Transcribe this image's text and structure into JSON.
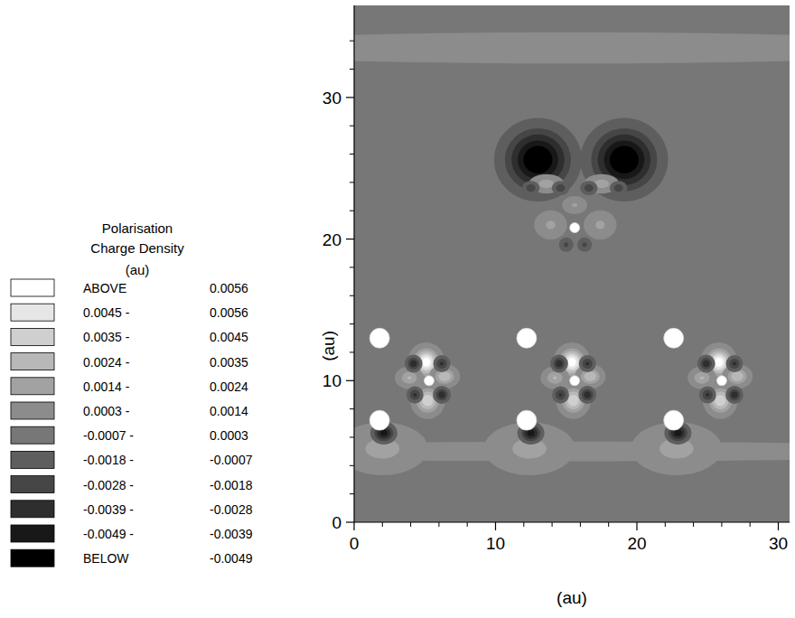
{
  "chart_data": {
    "type": "contour",
    "xlabel": "(au)",
    "ylabel": "(au)",
    "xlim": [
      0,
      30.8
    ],
    "ylim": [
      0,
      36.5
    ],
    "xticks": [
      0,
      10,
      20,
      30
    ],
    "yticks": [
      0,
      10,
      20,
      30
    ],
    "xticks_minor": [
      2,
      4,
      6,
      8,
      12,
      14,
      16,
      18,
      22,
      24,
      26,
      28
    ],
    "yticks_minor": [
      2,
      4,
      6,
      8,
      12,
      14,
      16,
      18,
      22,
      24,
      26,
      28,
      32,
      34
    ],
    "background": 0,
    "blobs": [
      {
        "x": 15.4,
        "y": 5.0,
        "rx": 30,
        "ry": 0.7,
        "value": 0.0008
      },
      {
        "x": 15.4,
        "y": 33.5,
        "rx": 30,
        "ry": 1.2,
        "value": 0.0007
      },
      {
        "x": 2.0,
        "y": 5.2,
        "rx": 2.4,
        "ry": 1.4,
        "value": 0.0018
      },
      {
        "x": 12.4,
        "y": 5.2,
        "rx": 2.4,
        "ry": 1.4,
        "value": 0.0018
      },
      {
        "x": 22.8,
        "y": 5.2,
        "rx": 2.4,
        "ry": 1.4,
        "value": 0.0018
      },
      {
        "x": 2.1,
        "y": 6.3,
        "rx": 0.7,
        "ry": 0.6,
        "value": -0.0045
      },
      {
        "x": 12.5,
        "y": 6.3,
        "rx": 0.7,
        "ry": 0.6,
        "value": -0.0045
      },
      {
        "x": 22.9,
        "y": 6.3,
        "rx": 0.7,
        "ry": 0.6,
        "value": -0.0045
      },
      {
        "x": 5.1,
        "y": 11.3,
        "rx": 0.75,
        "ry": 0.8,
        "value": 0.0065
      },
      {
        "x": 5.2,
        "y": 8.6,
        "rx": 0.75,
        "ry": 0.8,
        "value": 0.0045
      },
      {
        "x": 6.4,
        "y": 10.3,
        "rx": 0.7,
        "ry": 0.55,
        "value": 0.0035
      },
      {
        "x": 3.9,
        "y": 10.2,
        "rx": 0.7,
        "ry": 0.55,
        "value": 0.0025
      },
      {
        "x": 4.2,
        "y": 11.2,
        "rx": 0.5,
        "ry": 0.5,
        "value": -0.0035
      },
      {
        "x": 6.2,
        "y": 11.2,
        "rx": 0.5,
        "ry": 0.5,
        "value": -0.003
      },
      {
        "x": 4.3,
        "y": 9.0,
        "rx": 0.5,
        "ry": 0.5,
        "value": -0.003
      },
      {
        "x": 6.2,
        "y": 9.0,
        "rx": 0.5,
        "ry": 0.5,
        "value": -0.0035
      },
      {
        "x": 15.4,
        "y": 11.3,
        "rx": 0.75,
        "ry": 0.8,
        "value": 0.0065
      },
      {
        "x": 15.5,
        "y": 8.6,
        "rx": 0.75,
        "ry": 0.8,
        "value": 0.0045
      },
      {
        "x": 16.7,
        "y": 10.3,
        "rx": 0.7,
        "ry": 0.55,
        "value": 0.0035
      },
      {
        "x": 14.2,
        "y": 10.2,
        "rx": 0.7,
        "ry": 0.55,
        "value": 0.0025
      },
      {
        "x": 14.5,
        "y": 11.2,
        "rx": 0.5,
        "ry": 0.5,
        "value": -0.0035
      },
      {
        "x": 16.5,
        "y": 11.2,
        "rx": 0.5,
        "ry": 0.5,
        "value": -0.003
      },
      {
        "x": 14.6,
        "y": 9.0,
        "rx": 0.5,
        "ry": 0.5,
        "value": -0.003
      },
      {
        "x": 16.5,
        "y": 9.0,
        "rx": 0.5,
        "ry": 0.5,
        "value": -0.0035
      },
      {
        "x": 25.8,
        "y": 11.3,
        "rx": 0.75,
        "ry": 0.8,
        "value": 0.0065
      },
      {
        "x": 25.9,
        "y": 8.6,
        "rx": 0.75,
        "ry": 0.8,
        "value": 0.0045
      },
      {
        "x": 27.1,
        "y": 10.3,
        "rx": 0.7,
        "ry": 0.55,
        "value": 0.0035
      },
      {
        "x": 24.6,
        "y": 10.2,
        "rx": 0.7,
        "ry": 0.55,
        "value": 0.0025
      },
      {
        "x": 24.9,
        "y": 11.2,
        "rx": 0.5,
        "ry": 0.5,
        "value": -0.0035
      },
      {
        "x": 26.9,
        "y": 11.2,
        "rx": 0.5,
        "ry": 0.5,
        "value": -0.003
      },
      {
        "x": 25.0,
        "y": 9.0,
        "rx": 0.5,
        "ry": 0.5,
        "value": -0.003
      },
      {
        "x": 26.9,
        "y": 9.0,
        "rx": 0.5,
        "ry": 0.5,
        "value": -0.0035
      },
      {
        "x": 13.0,
        "y": 25.6,
        "rx": 2.1,
        "ry": 2.0,
        "value": -0.0062
      },
      {
        "x": 19.1,
        "y": 25.6,
        "rx": 2.1,
        "ry": 2.0,
        "value": -0.0062
      },
      {
        "x": 13.6,
        "y": 23.9,
        "rx": 0.9,
        "ry": 0.5,
        "value": 0.002
      },
      {
        "x": 17.5,
        "y": 23.9,
        "rx": 0.9,
        "ry": 0.5,
        "value": 0.002
      },
      {
        "x": 12.5,
        "y": 23.6,
        "rx": 0.55,
        "ry": 0.45,
        "value": -0.0025
      },
      {
        "x": 14.6,
        "y": 23.6,
        "rx": 0.55,
        "ry": 0.45,
        "value": -0.0025
      },
      {
        "x": 16.6,
        "y": 23.6,
        "rx": 0.55,
        "ry": 0.45,
        "value": -0.0025
      },
      {
        "x": 18.7,
        "y": 23.6,
        "rx": 0.55,
        "ry": 0.45,
        "value": -0.0025
      },
      {
        "x": 15.0,
        "y": 19.6,
        "rx": 0.5,
        "ry": 0.5,
        "value": -0.002
      },
      {
        "x": 16.3,
        "y": 19.6,
        "rx": 0.5,
        "ry": 0.5,
        "value": -0.002
      },
      {
        "x": 13.9,
        "y": 21.0,
        "rx": 0.9,
        "ry": 0.8,
        "value": 0.0016
      },
      {
        "x": 17.4,
        "y": 21.0,
        "rx": 0.9,
        "ry": 0.8,
        "value": 0.0016
      },
      {
        "x": 15.6,
        "y": 22.4,
        "rx": 0.7,
        "ry": 0.5,
        "value": 0.0015
      }
    ],
    "atoms": [
      {
        "x": 1.8,
        "y": 13.0,
        "r": 0.7
      },
      {
        "x": 12.2,
        "y": 13.0,
        "r": 0.7
      },
      {
        "x": 22.6,
        "y": 13.0,
        "r": 0.7
      },
      {
        "x": 1.8,
        "y": 7.2,
        "r": 0.7
      },
      {
        "x": 12.2,
        "y": 7.2,
        "r": 0.7
      },
      {
        "x": 22.6,
        "y": 7.2,
        "r": 0.7
      },
      {
        "x": 5.3,
        "y": 10.0,
        "r": 0.35
      },
      {
        "x": 15.6,
        "y": 10.0,
        "r": 0.35
      },
      {
        "x": 26.0,
        "y": 10.0,
        "r": 0.35
      },
      {
        "x": 15.6,
        "y": 20.8,
        "r": 0.35
      }
    ],
    "color_bar": {
      "title": [
        "Polarisation",
        "Charge Density",
        "(au)"
      ],
      "rows": [
        {
          "low": {
            "value": 0.0056,
            "label": "ABOVE"
          },
          "high": 0.0056,
          "color": "#ffffff"
        },
        {
          "low": {
            "value": 0.0045,
            "label": "0.0045 -"
          },
          "high": 0.0056,
          "color": "#e6e6e6"
        },
        {
          "low": {
            "value": 0.0035,
            "label": "0.0035 -"
          },
          "high": 0.0045,
          "color": "#cfcfcf"
        },
        {
          "low": {
            "value": 0.0024,
            "label": "0.0024 -"
          },
          "high": 0.0035,
          "color": "#b8b8b8"
        },
        {
          "low": {
            "value": 0.0014,
            "label": "0.0014 -"
          },
          "high": 0.0024,
          "color": "#a2a2a2"
        },
        {
          "low": {
            "value": 0.0003,
            "label": "0.0003 -"
          },
          "high": 0.0014,
          "color": "#8c8c8c"
        },
        {
          "low": {
            "value": -0.0007,
            "label": "-0.0007 -"
          },
          "high": 0.0003,
          "color": "#777777"
        },
        {
          "low": {
            "value": -0.0018,
            "label": "-0.0018 -"
          },
          "high": -0.0007,
          "color": "#5e5e5e"
        },
        {
          "low": {
            "value": -0.0028,
            "label": "-0.0028 -"
          },
          "high": -0.0018,
          "color": "#464646"
        },
        {
          "low": {
            "value": -0.0039,
            "label": "-0.0039 -"
          },
          "high": -0.0028,
          "color": "#2e2e2e"
        },
        {
          "low": {
            "value": -0.0049,
            "label": "-0.0049 -"
          },
          "high": -0.0039,
          "color": "#181818"
        },
        {
          "low": {
            "value": -0.0049,
            "label": "BELOW"
          },
          "high": -0.0049,
          "color": "#000000"
        }
      ]
    }
  }
}
